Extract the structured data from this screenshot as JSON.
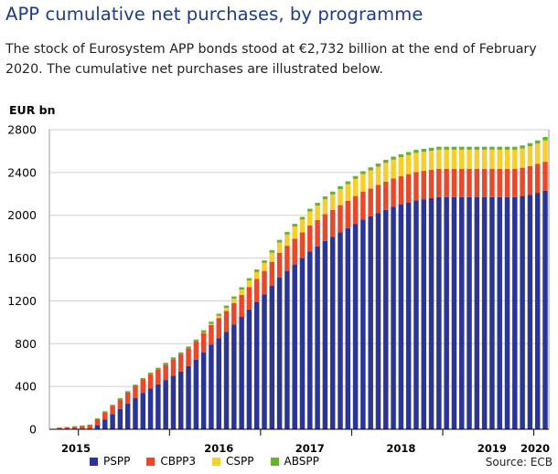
{
  "title": "APP cumulative net purchases, by programme",
  "description": "The stock of Eurosystem APP bonds stood at €2,732 billion at the end of February 2020. The cumulative net purchases are illustrated below.",
  "source": "Source: ECB",
  "colors": {
    "PSPP": "#2b3596",
    "CBPP3": "#e8492a",
    "CSPP": "#f6cf2f",
    "ABSPP": "#66b22e"
  },
  "chart_data": {
    "type": "bar",
    "stacked": true,
    "ylabel": "EUR bn",
    "ylim": [
      0,
      2800
    ],
    "yticks": [
      0,
      400,
      800,
      1200,
      1600,
      2000,
      2400,
      2800
    ],
    "grid": true,
    "legend_position": "bottom",
    "x_labels": [
      "2015",
      "2016",
      "2017",
      "2018",
      "2019",
      "2020"
    ],
    "categories": [
      "Oct 2014",
      "Nov 2014",
      "Dec 2014",
      "Jan 2015",
      "Feb 2015",
      "Mar 2015",
      "Apr 2015",
      "May 2015",
      "Jun 2015",
      "Jul 2015",
      "Aug 2015",
      "Sep 2015",
      "Oct 2015",
      "Nov 2015",
      "Dec 2015",
      "Jan 2016",
      "Feb 2016",
      "Mar 2016",
      "Apr 2016",
      "May 2016",
      "Jun 2016",
      "Jul 2016",
      "Aug 2016",
      "Sep 2016",
      "Oct 2016",
      "Nov 2016",
      "Dec 2016",
      "Jan 2017",
      "Feb 2017",
      "Mar 2017",
      "Apr 2017",
      "May 2017",
      "Jun 2017",
      "Jul 2017",
      "Aug 2017",
      "Sep 2017",
      "Oct 2017",
      "Nov 2017",
      "Dec 2017",
      "Jan 2018",
      "Feb 2018",
      "Mar 2018",
      "Apr 2018",
      "May 2018",
      "Jun 2018",
      "Jul 2018",
      "Aug 2018",
      "Sep 2018",
      "Oct 2018",
      "Nov 2018",
      "Dec 2018",
      "Jan 2019",
      "Feb 2019",
      "Mar 2019",
      "Apr 2019",
      "May 2019",
      "Jun 2019",
      "Jul 2019",
      "Aug 2019",
      "Sep 2019",
      "Oct 2019",
      "Nov 2019",
      "Dec 2019",
      "Jan 2020",
      "Feb 2020"
    ],
    "series": [
      {
        "name": "PSPP",
        "values": [
          0,
          0,
          0,
          0,
          0,
          40,
          90,
          140,
          190,
          240,
          290,
          340,
          380,
          420,
          460,
          500,
          540,
          590,
          650,
          720,
          790,
          850,
          910,
          980,
          1050,
          1120,
          1190,
          1260,
          1340,
          1420,
          1480,
          1540,
          1600,
          1660,
          1710,
          1760,
          1800,
          1840,
          1880,
          1920,
          1960,
          1990,
          2020,
          2050,
          2080,
          2100,
          2120,
          2140,
          2150,
          2160,
          2170,
          2170,
          2170,
          2170,
          2170,
          2170,
          2170,
          2170,
          2170,
          2170,
          2170,
          2180,
          2190,
          2210,
          2230
        ]
      },
      {
        "name": "CBPP3",
        "values": [
          15,
          20,
          25,
          30,
          38,
          55,
          70,
          80,
          90,
          105,
          115,
          125,
          135,
          140,
          145,
          155,
          160,
          165,
          170,
          180,
          185,
          190,
          195,
          200,
          205,
          210,
          215,
          220,
          225,
          230,
          235,
          240,
          240,
          245,
          245,
          250,
          250,
          255,
          255,
          260,
          260,
          260,
          265,
          265,
          265,
          265,
          265,
          265,
          265,
          265,
          265,
          265,
          265,
          265,
          265,
          265,
          265,
          265,
          265,
          265,
          265,
          265,
          270,
          270,
          270
        ]
      },
      {
        "name": "CSPP",
        "values": [
          0,
          0,
          0,
          0,
          0,
          0,
          0,
          0,
          0,
          0,
          0,
          0,
          0,
          0,
          0,
          0,
          0,
          0,
          0,
          5,
          10,
          20,
          30,
          40,
          50,
          60,
          65,
          75,
          85,
          95,
          105,
          115,
          120,
          130,
          135,
          140,
          145,
          150,
          155,
          160,
          165,
          170,
          170,
          175,
          175,
          178,
          178,
          178,
          178,
          178,
          178,
          178,
          178,
          178,
          178,
          178,
          178,
          178,
          178,
          178,
          178,
          180,
          185,
          190,
          200
        ]
      },
      {
        "name": "ABSPP",
        "values": [
          0,
          0,
          3,
          5,
          6,
          7,
          8,
          9,
          10,
          11,
          12,
          13,
          14,
          15,
          16,
          17,
          18,
          19,
          19,
          20,
          20,
          20,
          21,
          21,
          22,
          22,
          23,
          23,
          24,
          25,
          25,
          25,
          25,
          26,
          26,
          26,
          26,
          27,
          27,
          27,
          27,
          28,
          28,
          28,
          28,
          28,
          28,
          28,
          28,
          28,
          28,
          28,
          28,
          28,
          28,
          28,
          28,
          28,
          28,
          28,
          28,
          28,
          29,
          30,
          32
        ]
      }
    ]
  }
}
